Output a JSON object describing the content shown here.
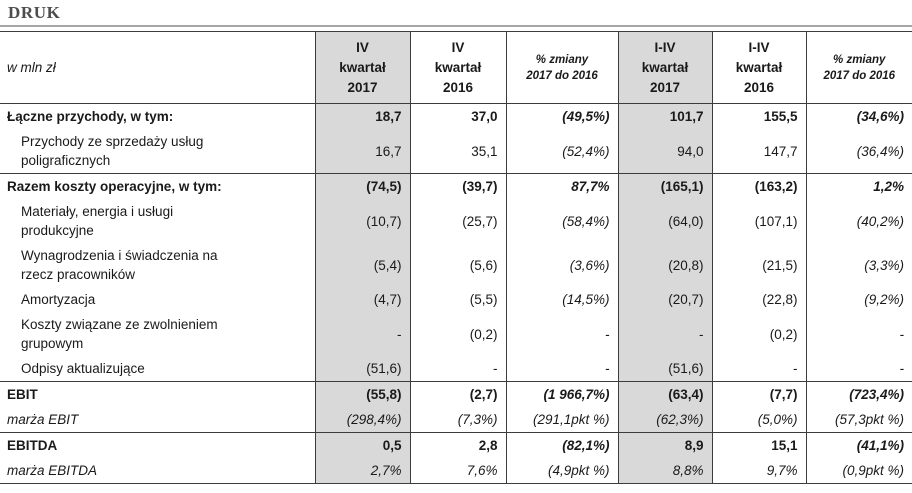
{
  "title": "DRUK",
  "colors": {
    "column_highlight": "#d9d9d9",
    "title_rule": "#a6a6a6",
    "table_border": "#3c3c3c"
  },
  "table": {
    "unit_label": "w mln zł",
    "headers": [
      "IV\nkwartał\n2017",
      "IV\nkwartał\n2016",
      "% zmiany\n2017 do 2016",
      "I-IV\nkwartał\n2017",
      "I-IV\nkwartał\n2016",
      "% zmiany\n2017 do 2016"
    ],
    "rows": [
      {
        "label": "Łączne przychody, w tym:",
        "values": [
          "18,7",
          "37,0",
          "(49,5%)",
          "101,7",
          "155,5",
          "(34,6%)"
        ]
      },
      {
        "label": "Przychody ze sprzedaży usług\npoligraficznych",
        "values": [
          "16,7",
          "35,1",
          "(52,4%)",
          "94,0",
          "147,7",
          "(36,4%)"
        ]
      },
      {
        "label": "Razem koszty operacyjne, w tym:",
        "values": [
          "(74,5)",
          "(39,7)",
          "87,7%",
          "(165,1)",
          "(163,2)",
          "1,2%"
        ]
      },
      {
        "label": "Materiały, energia i usługi\nprodukcyjne",
        "values": [
          "(10,7)",
          "(25,7)",
          "(58,4%)",
          "(64,0)",
          "(107,1)",
          "(40,2%)"
        ]
      },
      {
        "label": "Wynagrodzenia i świadczenia na\nrzecz pracowników",
        "values": [
          "(5,4)",
          "(5,6)",
          "(3,6%)",
          "(20,8)",
          "(21,5)",
          "(3,3%)"
        ]
      },
      {
        "label": "Amortyzacja",
        "values": [
          "(4,7)",
          "(5,5)",
          "(14,5%)",
          "(20,7)",
          "(22,8)",
          "(9,2%)"
        ]
      },
      {
        "label": "Koszty związane ze zwolnieniem\ngrupowym",
        "values": [
          "-",
          "(0,2)",
          "-",
          "-",
          "(0,2)",
          "-"
        ]
      },
      {
        "label": "Odpisy aktualizujące",
        "values": [
          "(51,6)",
          "-",
          "-",
          "(51,6)",
          "-",
          "-"
        ]
      },
      {
        "label": "EBIT",
        "values": [
          "(55,8)",
          "(2,7)",
          "(1 966,7%)",
          "(63,4)",
          "(7,7)",
          "(723,4%)"
        ]
      },
      {
        "label": "marża EBIT",
        "values": [
          "(298,4%)",
          "(7,3%)",
          "(291,1pkt %)",
          "(62,3%)",
          "(5,0%)",
          "(57,3pkt %)"
        ]
      },
      {
        "label": "EBITDA",
        "values": [
          "0,5",
          "2,8",
          "(82,1%)",
          "8,9",
          "15,1",
          "(41,1%)"
        ]
      },
      {
        "label": "marża EBITDA",
        "values": [
          "2,7%",
          "7,6%",
          "(4,9pkt %)",
          "8,8%",
          "9,7%",
          "(0,9pkt %)"
        ]
      }
    ]
  }
}
